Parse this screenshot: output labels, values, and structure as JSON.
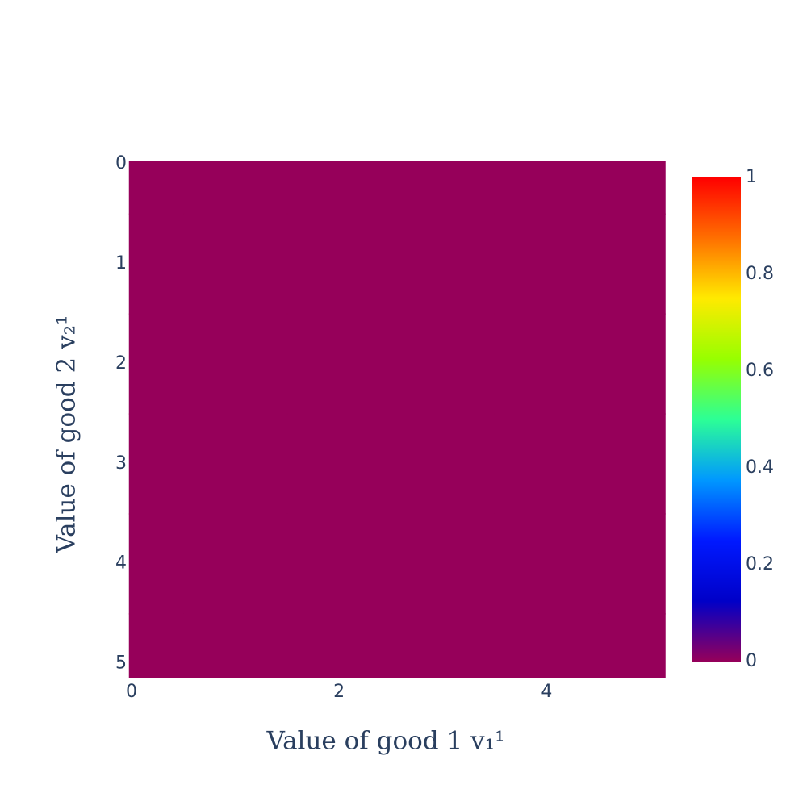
{
  "chart_data": {
    "type": "heatmap",
    "xlabel": "Value of good 1 v₁¹",
    "ylabel": "Value of good 2 v₂¹",
    "x": [
      0,
      1,
      2,
      3,
      4,
      5
    ],
    "y": [
      0,
      1,
      2,
      3,
      4,
      5
    ],
    "z": [
      [
        0,
        0,
        0,
        0,
        0,
        0
      ],
      [
        0,
        0,
        0,
        0,
        0,
        0
      ],
      [
        0,
        0,
        0,
        0,
        0,
        0
      ],
      [
        0,
        0,
        0,
        0,
        0,
        0
      ],
      [
        0,
        0,
        0,
        0,
        0,
        0
      ],
      [
        0,
        0,
        0,
        0,
        0,
        0
      ]
    ],
    "xlim": [
      -0.023,
      5.14
    ],
    "xticks": [
      0,
      2,
      4
    ],
    "ylim": [
      -0.024,
      5.14
    ],
    "yticks": [
      0,
      1,
      2,
      3,
      4,
      5
    ],
    "y_reversed": true,
    "zlim": [
      0,
      1
    ],
    "colorbar_ticks": [
      0,
      0.2,
      0.4,
      0.6,
      0.8,
      1
    ],
    "colorscale": [
      [
        0,
        "#96005a"
      ],
      [
        0.125,
        "#0000c8"
      ],
      [
        0.25,
        "#0019ff"
      ],
      [
        0.375,
        "#0098ff"
      ],
      [
        0.5,
        "#2cff96"
      ],
      [
        0.625,
        "#97ff00"
      ],
      [
        0.75,
        "#ffea00"
      ],
      [
        0.875,
        "#ff6f00"
      ],
      [
        1,
        "#ff0000"
      ]
    ]
  }
}
